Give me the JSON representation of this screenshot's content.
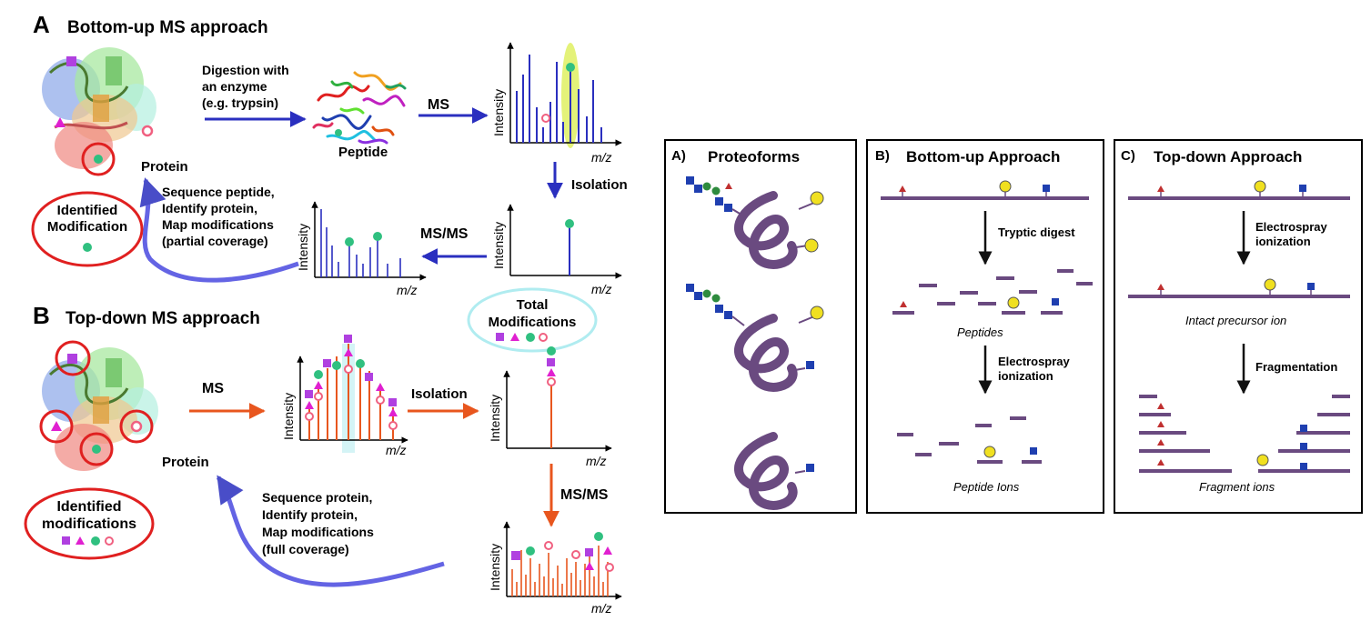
{
  "left_panel": {
    "section_a": {
      "letter": "A",
      "title": "Bottom-up MS approach",
      "digestion_label_line1": "Digestion with",
      "digestion_label_line2": "an enzyme",
      "digestion_label_line3": "(e.g. trypsin)",
      "peptide_label": "Peptide",
      "protein_label": "Protein",
      "ms_label": "MS",
      "isolation_label": "Isolation",
      "msms_label": "MS/MS",
      "identified_line1": "Identified",
      "identified_line2": "Modification",
      "sequence_line1": "Sequence peptide,",
      "sequence_line2": "Identify protein,",
      "sequence_line3": "Map modifications",
      "sequence_line4": "(partial coverage)",
      "y_axis": "Intensity",
      "x_axis": "m/z"
    },
    "section_b": {
      "letter": "B",
      "title": "Top-down MS approach",
      "ms_label": "MS",
      "isolation_label": "Isolation",
      "msms_label": "MS/MS",
      "protein_label": "Protein",
      "total_line1": "Total",
      "total_line2": "Modifications",
      "identified_line1": "Identified",
      "identified_line2": "modifications",
      "sequence_line1": "Sequence protein,",
      "sequence_line2": "Identify protein,",
      "sequence_line3": "Map modifications",
      "sequence_line4": "(full coverage)",
      "y_axis": "Intensity",
      "x_axis": "m/z"
    }
  },
  "right_panel": {
    "box_a": {
      "label": "A)",
      "title": "Proteoforms"
    },
    "box_b": {
      "label": "B)",
      "title": "Bottom-up Approach",
      "step1": "Tryptic digest",
      "intermediate": "Peptides",
      "step2_line1": "Electrospray",
      "step2_line2": "ionization",
      "result": "Peptide Ions"
    },
    "box_c": {
      "label": "C)",
      "title": "Top-down Approach",
      "step1_line1": "Electrospray",
      "step1_line2": "ionization",
      "intermediate": "Intact precursor ion",
      "step2": "Fragmentation",
      "result": "Fragment ions"
    }
  },
  "colors": {
    "ms_blue": "#2a2fbf",
    "ms_orange": "#e8561e",
    "highlight_red": "#e02020",
    "mod_purple": "#b040e0",
    "mod_magenta": "#e020d0",
    "mod_green": "#30c080",
    "mod_pink": "#f06080",
    "chain_purple": "#6a4a80",
    "glycan_blue": "#1f3fb0",
    "glycan_green": "#2e8b3e",
    "sphere_yellow": "#f0e020",
    "triangle_red": "#c03030"
  }
}
